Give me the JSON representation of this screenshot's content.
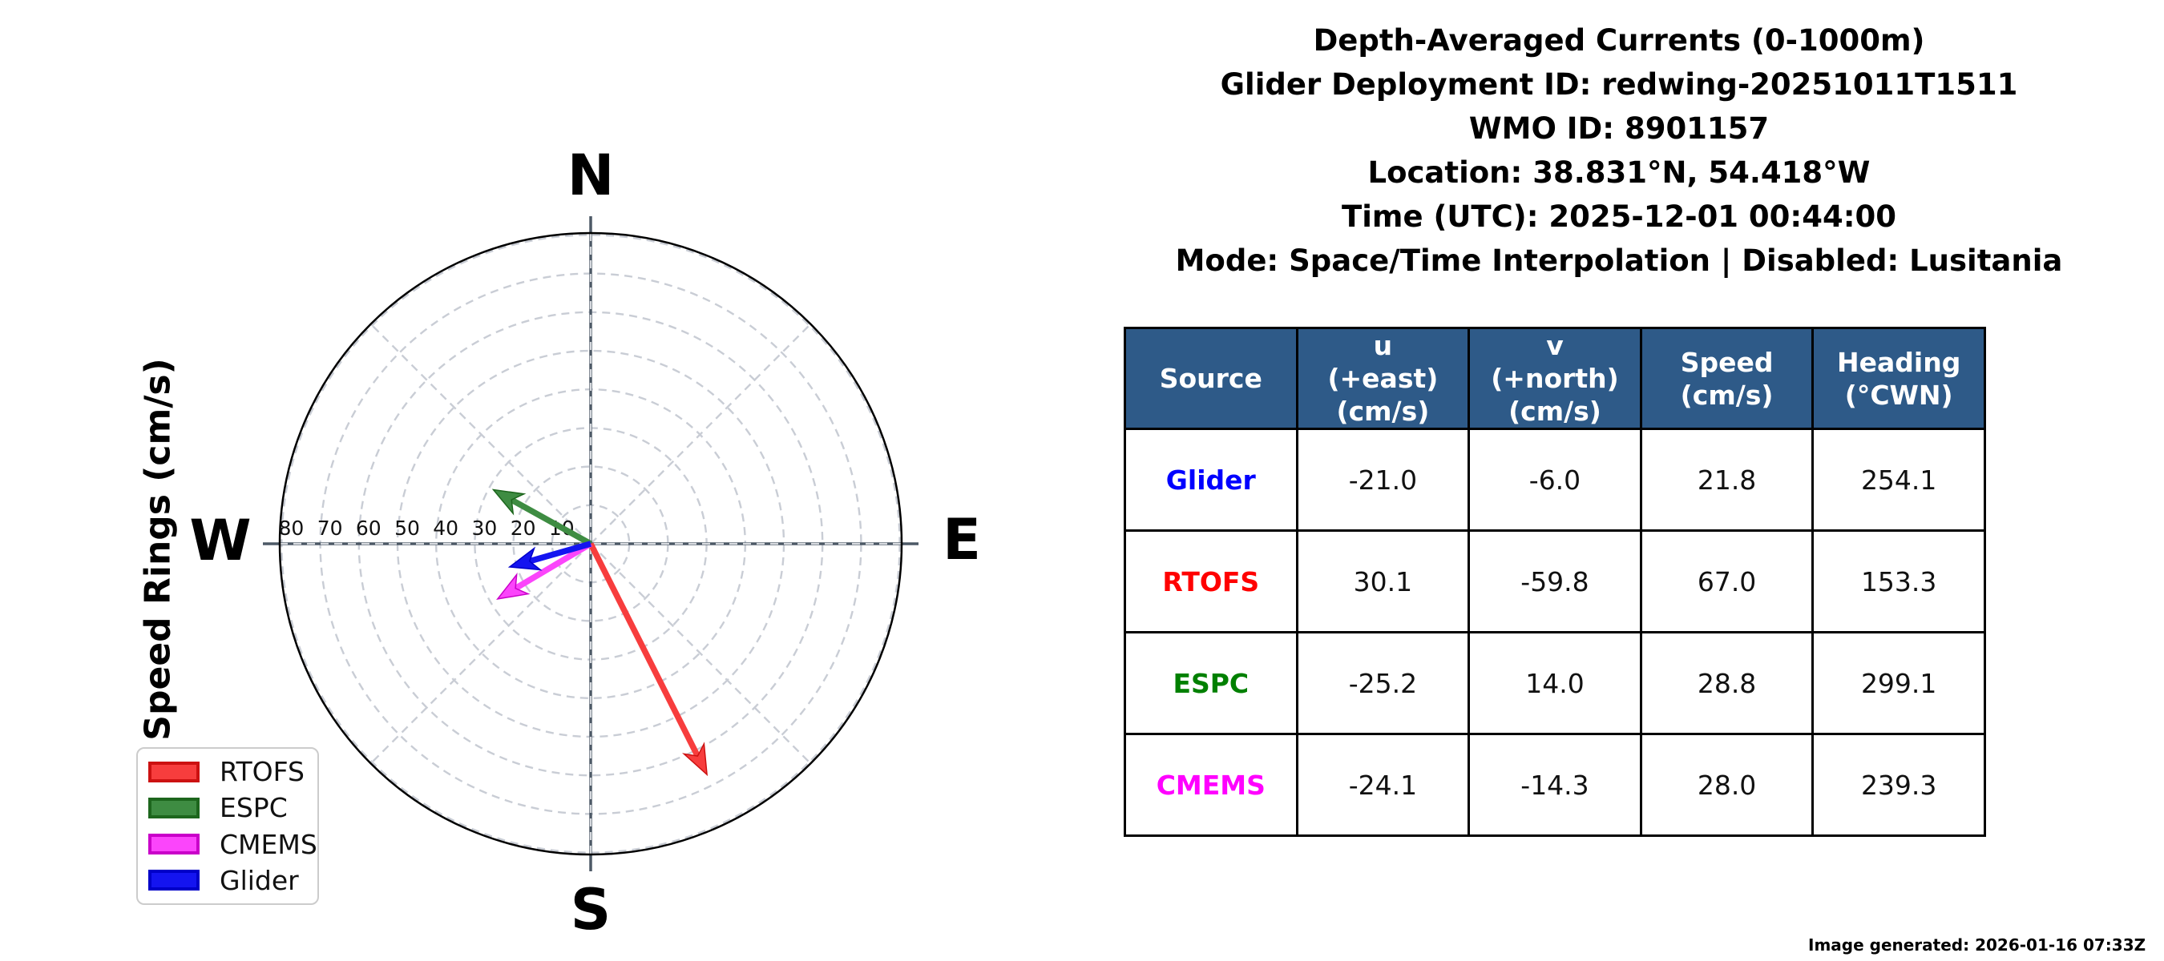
{
  "title_block": {
    "lines": [
      "Depth-Averaged Currents (0-1000m)",
      "Glider Deployment ID: redwing-20251011T1511",
      "WMO ID: 8901157",
      "Location: 38.831°N, 54.418°W",
      "Time (UTC): 2025-12-01 00:44:00",
      "Mode: Space/Time Interpolation | Disabled: Lusitania"
    ]
  },
  "compass": {
    "north": "N",
    "south": "S",
    "east": "E",
    "west": "W"
  },
  "axis_label": "Speed Rings (cm/s)",
  "chart_data": {
    "type": "polar_vector",
    "title": "Depth-Averaged Currents (0-1000m)",
    "ring_values": [
      10,
      20,
      30,
      40,
      50,
      60,
      70,
      80
    ],
    "ring_unit": "cm/s",
    "rmax": 80,
    "grid": "dashed rings every 10 cm/s with 45-degree spokes",
    "legend_position": "lower left",
    "series": [
      {
        "name": "RTOFS",
        "u": 30.1,
        "v": -59.8,
        "speed": 67.0,
        "heading_cwn": 153.3,
        "color": "#f73d3d",
        "edge": "#cc1111"
      },
      {
        "name": "ESPC",
        "u": -25.2,
        "v": 14.0,
        "speed": 28.8,
        "heading_cwn": 299.1,
        "color": "#3e8c42",
        "edge": "#1d661d"
      },
      {
        "name": "CMEMS",
        "u": -24.1,
        "v": -14.3,
        "speed": 28.0,
        "heading_cwn": 239.3,
        "color": "#fb45fb",
        "edge": "#c900c9"
      },
      {
        "name": "Glider",
        "u": -21.0,
        "v": -6.0,
        "speed": 21.8,
        "heading_cwn": 254.1,
        "color": "#1414f0",
        "edge": "#0000c8"
      }
    ],
    "colors": {
      "grid": "#c9cdd5",
      "axis_cross": "#4d5966",
      "outer_circle": "#000000"
    }
  },
  "table": {
    "header_bg": "#2e5a88",
    "headers": [
      "Source",
      "u\n(+east)\n(cm/s)",
      "v\n(+north)\n(cm/s)",
      "Speed\n(cm/s)",
      "Heading\n(°CWN)"
    ],
    "rows": [
      {
        "source": "Glider",
        "color": "#0000ff",
        "u": "-21.0",
        "v": "-6.0",
        "speed": "21.8",
        "heading": "254.1"
      },
      {
        "source": "RTOFS",
        "color": "#ff0000",
        "u": "30.1",
        "v": "-59.8",
        "speed": "67.0",
        "heading": "153.3"
      },
      {
        "source": "ESPC",
        "color": "#008000",
        "u": "-25.2",
        "v": "14.0",
        "speed": "28.8",
        "heading": "299.1"
      },
      {
        "source": "CMEMS",
        "color": "#ff00ff",
        "u": "-24.1",
        "v": "-14.3",
        "speed": "28.0",
        "heading": "239.3"
      }
    ]
  },
  "footer": {
    "generated": "Image generated: 2026-01-16 07:33Z"
  }
}
